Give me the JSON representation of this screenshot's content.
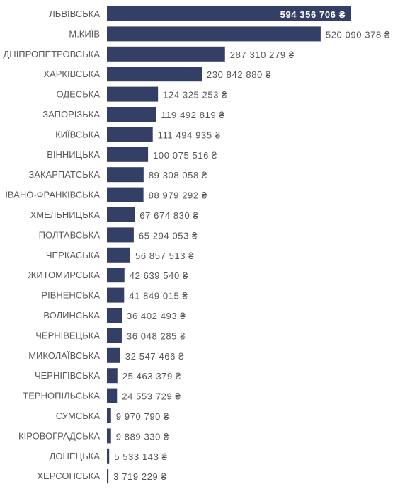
{
  "chart_data": {
    "type": "bar",
    "orientation": "horizontal",
    "categories": [
      "ЛЬВІВСЬКА",
      "М.КИЇВ",
      "ДНІПРОПЕТРОВСЬКА",
      "ХАРКІВСЬКА",
      "ОДЕСЬКА",
      "ЗАПОРІЗЬКА",
      "КИЇВСЬКА",
      "ВІННИЦЬКА",
      "ЗАКАРПАТСЬКА",
      "ІВАНО-ФРАНКІВСЬКА",
      "ХМЕЛЬНИЦЬКА",
      "ПОЛТАВСЬКА",
      "ЧЕРКАСЬКА",
      "ЖИТОМИРСЬКА",
      "РІВНЕНСЬКА",
      "ВОЛИНСЬКА",
      "ЧЕРНІВЕЦЬКА",
      "МИКОЛАЇВСЬКА",
      "ЧЕРНІГІВСЬКА",
      "ТЕРНОПІЛЬСЬКА",
      "СУМСЬКА",
      "КІРОВОГРАДСЬКА",
      "ДОНЕЦЬКА",
      "ХЕРСОНСЬКА"
    ],
    "values": [
      594356706,
      520090378,
      287310279,
      230842880,
      124325253,
      119492819,
      111494935,
      100075516,
      89308058,
      88979292,
      67674830,
      65294053,
      56857513,
      42639540,
      41849015,
      36402493,
      36048285,
      32547466,
      25463379,
      24553729,
      9970790,
      9889330,
      5533143,
      3719229
    ],
    "value_labels": [
      "594 356 706 ₴",
      "520 090 378 ₴",
      "287 310 279 ₴",
      "230 842 880 ₴",
      "124 325 253 ₴",
      "119 492 819 ₴",
      "111 494 935 ₴",
      "100 075 516 ₴",
      "89 308 058 ₴",
      "88 979 292 ₴",
      "67 674 830 ₴",
      "65 294 053 ₴",
      "56 857 513 ₴",
      "42 639 540 ₴",
      "41 849 015 ₴",
      "36 402 493 ₴",
      "36 048 285 ₴",
      "32 547 466 ₴",
      "25 463 379 ₴",
      "24 553 729 ₴",
      "9 970 790 ₴",
      "9 889 330 ₴",
      "5 533 143 ₴",
      "3 719 229 ₴"
    ],
    "xlim": [
      0,
      594356706
    ],
    "bar_color": "#343f65",
    "grid": false,
    "legend": "none"
  }
}
